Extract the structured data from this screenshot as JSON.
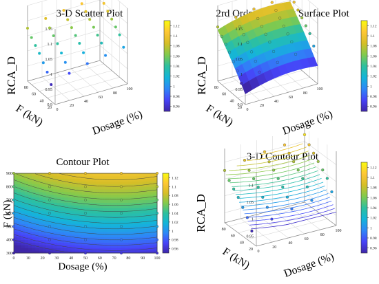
{
  "colors": {
    "parula": [
      "#3e26a8",
      "#4743f8",
      "#2e87f7",
      "#14b5d9",
      "#2ec09e",
      "#82ca4d",
      "#d6be27",
      "#fec735",
      "#f9fb0e"
    ],
    "axis": "#333333",
    "grid": "#d9d9d9",
    "contour_line": "#444444"
  },
  "chart_data": [
    {
      "type": "scatter3d",
      "title": "3-D Scatter Plot",
      "xlabel": "Dosage (%)",
      "ylabel": "F (kN)",
      "zlabel": "RCA_D",
      "xticks": [
        "0",
        "20",
        "40",
        "60",
        "80",
        "100"
      ],
      "yticks": [
        "20",
        "40",
        "60",
        "80"
      ],
      "zticks": [
        "0.9",
        "0.95",
        "1",
        "1.05",
        "1.1",
        "1.15"
      ],
      "x_range": [
        0,
        100
      ],
      "y_range": [
        20,
        90
      ],
      "z_range": [
        0.9,
        1.15
      ],
      "colorbar": {
        "range": [
          0.95,
          1.13
        ],
        "ticks": [
          "0.96",
          "0.98",
          "1",
          "1.02",
          "1.04",
          "1.06",
          "1.08",
          "1.1",
          "1.12"
        ]
      },
      "dosage_values": [
        0,
        25,
        50,
        75,
        100
      ],
      "force_values": [
        30,
        40,
        50,
        60,
        70,
        80,
        90
      ],
      "points": [
        {
          "x": 0,
          "y": 30,
          "z": 0.955
        },
        {
          "x": 25,
          "y": 30,
          "z": 0.975
        },
        {
          "x": 0,
          "y": 40,
          "z": 0.985
        },
        {
          "x": 25,
          "y": 40,
          "z": 1.0
        },
        {
          "x": 0,
          "y": 50,
          "z": 1.005
        },
        {
          "x": 50,
          "y": 40,
          "z": 1.015
        },
        {
          "x": 25,
          "y": 50,
          "z": 1.02
        },
        {
          "x": 0,
          "y": 60,
          "z": 1.025
        },
        {
          "x": 50,
          "y": 50,
          "z": 1.035
        },
        {
          "x": 25,
          "y": 60,
          "z": 1.04
        },
        {
          "x": 75,
          "y": 40,
          "z": 1.03
        },
        {
          "x": 0,
          "y": 70,
          "z": 1.04
        },
        {
          "x": 50,
          "y": 60,
          "z": 1.05
        },
        {
          "x": 25,
          "y": 70,
          "z": 1.055
        },
        {
          "x": 75,
          "y": 50,
          "z": 1.045
        },
        {
          "x": 0,
          "y": 80,
          "z": 1.055
        },
        {
          "x": 100,
          "y": 40,
          "z": 1.04
        },
        {
          "x": 50,
          "y": 70,
          "z": 1.065
        },
        {
          "x": 25,
          "y": 80,
          "z": 1.07
        },
        {
          "x": 75,
          "y": 60,
          "z": 1.06
        },
        {
          "x": 100,
          "y": 50,
          "z": 1.055
        },
        {
          "x": 0,
          "y": 90,
          "z": 1.075
        },
        {
          "x": 50,
          "y": 80,
          "z": 1.08
        },
        {
          "x": 75,
          "y": 70,
          "z": 1.075
        },
        {
          "x": 25,
          "y": 90,
          "z": 1.09
        },
        {
          "x": 100,
          "y": 60,
          "z": 1.07
        },
        {
          "x": 50,
          "y": 90,
          "z": 1.1
        },
        {
          "x": 75,
          "y": 80,
          "z": 1.09
        },
        {
          "x": 100,
          "y": 70,
          "z": 1.085
        },
        {
          "x": 75,
          "y": 90,
          "z": 1.105
        },
        {
          "x": 100,
          "y": 80,
          "z": 1.1
        },
        {
          "x": 100,
          "y": 90,
          "z": 1.12
        },
        {
          "x": 100,
          "y": 30,
          "z": 1.01
        },
        {
          "x": 50,
          "y": 30,
          "z": 0.99
        },
        {
          "x": 75,
          "y": 30,
          "z": 1.0
        }
      ]
    },
    {
      "type": "surface3d",
      "title": "2rd Order Treading Surface Plot",
      "xlabel": "Dosage (%)",
      "ylabel": "F (kN)",
      "zlabel": "RCA_D",
      "xticks": [
        "0",
        "20",
        "40",
        "60",
        "80",
        "100"
      ],
      "yticks": [
        "20",
        "40",
        "60",
        "80"
      ],
      "zticks": [
        "0.9",
        "0.95",
        "1",
        "1.05",
        "1.1",
        "1.15"
      ],
      "x_range": [
        0,
        100
      ],
      "y_range": [
        20,
        90
      ],
      "z_range": [
        0.9,
        1.15
      ],
      "colorbar": {
        "range": [
          0.95,
          1.13
        ],
        "ticks": [
          "0.96",
          "0.98",
          "1",
          "1.02",
          "1.04",
          "1.06",
          "1.08",
          "1.1",
          "1.12"
        ]
      }
    },
    {
      "type": "contour",
      "title": "Contour Plot",
      "xlabel": "Dosage (%)",
      "ylabel": "F (kN)",
      "xticks": [
        "0",
        "10",
        "20",
        "30",
        "40",
        "50",
        "60",
        "70",
        "80",
        "90",
        "100"
      ],
      "yticks": [
        "300",
        "400",
        "500",
        "600",
        "700",
        "800",
        "900"
      ],
      "x_range": [
        0,
        100
      ],
      "y_range": [
        300,
        900
      ],
      "levels": [
        0.96,
        0.97,
        0.98,
        0.99,
        1.0,
        1.01,
        1.02,
        1.03,
        1.04,
        1.05,
        1.06,
        1.07,
        1.08,
        1.09,
        1.1,
        1.11
      ],
      "colorbar": {
        "range": [
          0.95,
          1.13
        ],
        "ticks": [
          "0.96",
          "0.98",
          "1",
          "1.02",
          "1.04",
          "1.06",
          "1.08",
          "1.1",
          "1.12"
        ]
      },
      "sample_x": [
        0,
        25,
        50,
        75,
        100
      ],
      "sample_y": [
        300,
        400,
        500,
        600,
        700,
        800,
        900
      ]
    },
    {
      "type": "contour3d",
      "title": "3-D Contour Plot",
      "xlabel": "Dosage (%)",
      "ylabel": "F (kN)",
      "zlabel": "RCA_D",
      "xticks": [
        "0",
        "20",
        "40",
        "60",
        "80",
        "100"
      ],
      "yticks": [
        "20",
        "40",
        "60",
        "80"
      ],
      "zticks": [
        "0.95",
        "1",
        "1.05",
        "1.1"
      ],
      "x_range": [
        0,
        100
      ],
      "y_range": [
        20,
        90
      ],
      "z_range": [
        0.92,
        1.14
      ],
      "colorbar": {
        "range": [
          0.95,
          1.13
        ],
        "ticks": [
          "0.96",
          "0.98",
          "1",
          "1.02",
          "1.04",
          "1.06",
          "1.08",
          "1.1",
          "1.12"
        ]
      }
    }
  ]
}
